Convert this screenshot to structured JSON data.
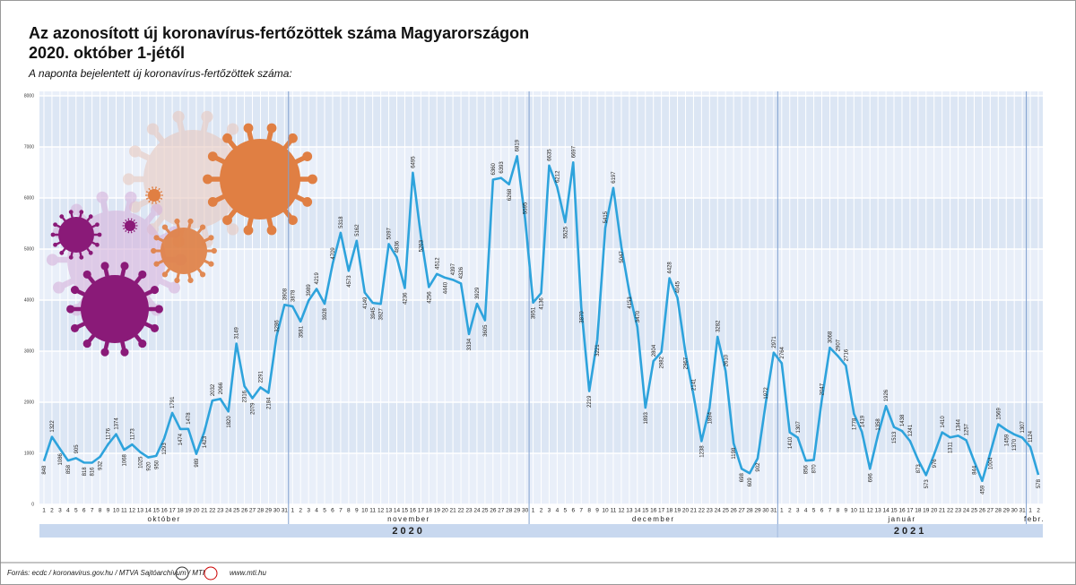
{
  "chart_data": {
    "type": "line",
    "title": "Az azonosított új koronavírus-fertőzöttek száma Magyarországon",
    "title_line2": "2020. október 1-jétől",
    "subtitle": "A naponta bejelentett új koronavírus-fertőzöttek száma:",
    "source": "Forrás: ecdc / koronavirus.gov.hu / MTVA Sajtóarchívum / MTI",
    "website": "www.mti.hu",
    "color": "#2ea3dc",
    "ylim": [
      0,
      8000
    ],
    "yticks": [
      0,
      1000,
      2000,
      3000,
      4000,
      5000,
      6000,
      7000,
      8000
    ],
    "grid": true,
    "years": [
      {
        "label": "2020",
        "months": [
          {
            "name": "október",
            "days": [
              "1",
              "2",
              "3",
              "4",
              "5",
              "6",
              "7",
              "8",
              "9",
              "10",
              "11",
              "12",
              "13",
              "14",
              "15",
              "16",
              "17",
              "18",
              "19",
              "20",
              "21",
              "22",
              "23",
              "24",
              "25",
              "26",
              "27",
              "28",
              "29",
              "30",
              "31"
            ],
            "values": [
              848,
              1322,
              1086,
              858,
              905,
              818,
              816,
              932,
              1176,
              1374,
              1068,
              1173,
              1025,
              920,
              950,
              1293,
              1791,
              1474,
              1478,
              989,
              1423,
              2032,
              2066,
              1820,
              3149,
              2316,
              2079,
              2291,
              2184,
              3286,
              3908
            ]
          },
          {
            "name": "november",
            "days": [
              "1",
              "2",
              "3",
              "4",
              "5",
              "6",
              "7",
              "8",
              "9",
              "10",
              "11",
              "12",
              "13",
              "14",
              "15",
              "16",
              "17",
              "18",
              "19",
              "20",
              "21",
              "22",
              "23",
              "24",
              "25",
              "26",
              "27",
              "28",
              "29",
              "30"
            ],
            "values": [
              3878,
              3581,
              3989,
              4219,
              3928,
              4709,
              5318,
              4573,
              5162,
              4149,
              3945,
              3927,
              5097,
              4836,
              4236,
              6495,
              5263,
              4256,
              4512,
              4440,
              4397,
              4326,
              3334,
              3929,
              3605,
              6360,
              6393,
              6268,
              6819,
              5595
            ]
          },
          {
            "name": "december",
            "days": [
              "1",
              "2",
              "3",
              "4",
              "5",
              "6",
              "7",
              "8",
              "9",
              "10",
              "11",
              "12",
              "13",
              "14",
              "15",
              "16",
              "17",
              "18",
              "19",
              "20",
              "21",
              "22",
              "23",
              "24",
              "25",
              "26",
              "27",
              "28",
              "29",
              "30",
              "31"
            ],
            "values": [
              3951,
              4136,
              6635,
              6212,
              5525,
              6697,
              3870,
              2219,
              3221,
              5415,
              6197,
              5047,
              4153,
              3470,
              1893,
              2804,
              2982,
              4428,
              4045,
              2967,
              2141,
              1238,
              1894,
              3282,
              2610,
              1198,
              698,
              609,
              902,
              1972,
              2971
            ]
          }
        ]
      },
      {
        "label": "2021",
        "months": [
          {
            "name": "január",
            "days": [
              "1",
              "2",
              "3",
              "4",
              "5",
              "6",
              "7",
              "8",
              "9",
              "10",
              "11",
              "12",
              "13",
              "14",
              "15",
              "16",
              "17",
              "18",
              "19",
              "20",
              "21",
              "22",
              "23",
              "24",
              "25",
              "26",
              "27",
              "28",
              "29",
              "30",
              "31"
            ],
            "values": [
              2764,
              1410,
              1307,
              856,
              870,
              2047,
              3068,
              2907,
              2716,
              1778,
              1419,
              696,
              1358,
              1926,
              1513,
              1438,
              1241,
              873,
              573,
              976,
              1410,
              1311,
              1344,
              1257,
              844,
              459,
              1004,
              1569,
              1459,
              1370,
              1307
            ]
          },
          {
            "name": "febr.",
            "days": [
              "1",
              "2"
            ],
            "values": [
              1124,
              578
            ]
          }
        ]
      }
    ]
  }
}
